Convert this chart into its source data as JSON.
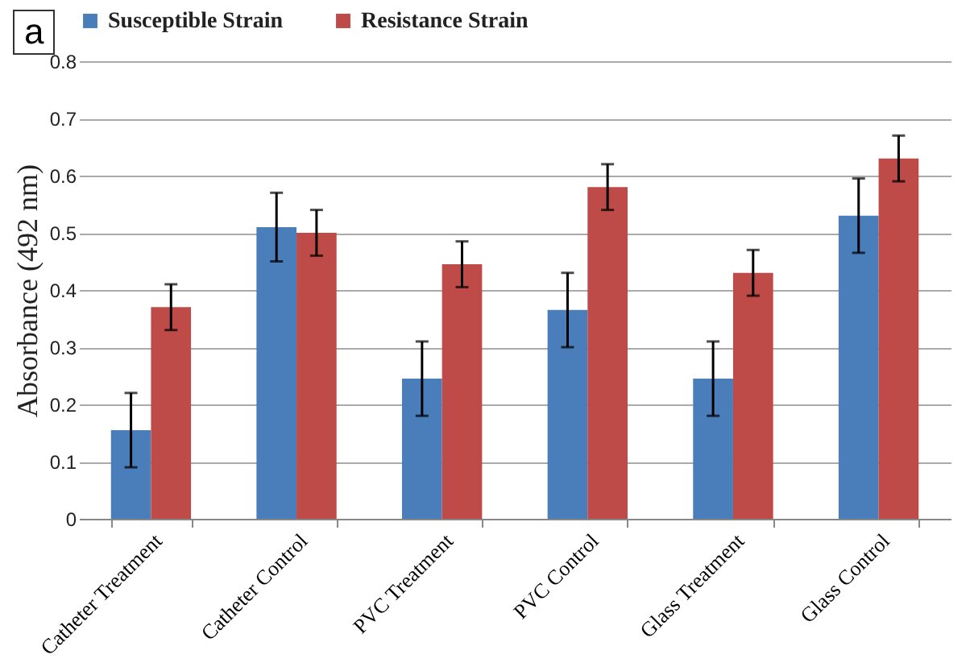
{
  "chart_data": {
    "type": "bar",
    "categories": [
      "Catheter Treatment",
      "Catheter Control",
      "PVC Treatment",
      "PVC Control",
      "Glass Treatment",
      "Glass Control"
    ],
    "series": [
      {
        "name": "Susceptible Strain",
        "color": "#4a7ebb",
        "values": [
          0.155,
          0.51,
          0.245,
          0.365,
          0.245,
          0.53
        ],
        "errors": [
          0.065,
          0.06,
          0.065,
          0.065,
          0.065,
          0.065
        ]
      },
      {
        "name": "Resistance Strain",
        "color": "#be4b48",
        "values": [
          0.37,
          0.5,
          0.445,
          0.58,
          0.43,
          0.63
        ],
        "errors": [
          0.04,
          0.04,
          0.04,
          0.04,
          0.04,
          0.04
        ]
      }
    ],
    "ylabel": "Absorbance (492 nm)",
    "ylim": [
      0,
      0.8
    ],
    "yticks": [
      0,
      0.1,
      0.2,
      0.3,
      0.4,
      0.5,
      0.6,
      0.7,
      0.8
    ],
    "grid": "y",
    "legend": "top",
    "annotations": [
      "a"
    ]
  }
}
